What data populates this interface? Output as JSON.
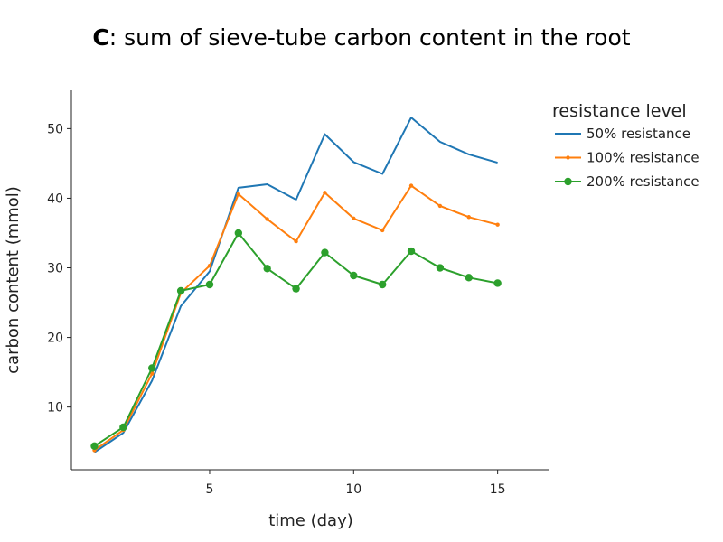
{
  "chart_data": {
    "type": "line",
    "title_prefix": "C",
    "title": ": sum of sieve-tube carbon content in the root",
    "xlabel": "time (day)",
    "ylabel": "carbon content (mmol)",
    "xlim": [
      0.2,
      16.8
    ],
    "ylim": [
      1,
      55.5
    ],
    "x_ticks": [
      5,
      10,
      15
    ],
    "y_ticks": [
      10,
      20,
      30,
      40,
      50
    ],
    "grid": false,
    "legend_title": "resistance level",
    "legend_position": "top-right",
    "x": [
      1,
      2,
      3,
      4,
      5,
      6,
      7,
      8,
      9,
      10,
      11,
      12,
      13,
      14,
      15
    ],
    "series": [
      {
        "name": "50% resistance",
        "color": "#1f77b4",
        "marker": "none",
        "values": [
          3.5,
          6.3,
          13.8,
          24.5,
          29.5,
          41.5,
          42.0,
          39.8,
          49.2,
          45.2,
          43.5,
          51.6,
          48.1,
          46.3,
          45.1
        ]
      },
      {
        "name": "100% resistance",
        "color": "#ff7f0e",
        "marker": "small-dot",
        "values": [
          3.8,
          6.7,
          14.8,
          26.4,
          30.3,
          40.6,
          37.0,
          33.8,
          40.8,
          37.1,
          35.4,
          41.8,
          38.9,
          37.3,
          36.2
        ]
      },
      {
        "name": "200% resistance",
        "color": "#2ca02c",
        "marker": "dot",
        "values": [
          4.4,
          7.1,
          15.6,
          26.7,
          27.6,
          35.0,
          29.9,
          27.0,
          32.2,
          28.9,
          27.6,
          32.4,
          30.0,
          28.6,
          27.8
        ]
      }
    ]
  }
}
